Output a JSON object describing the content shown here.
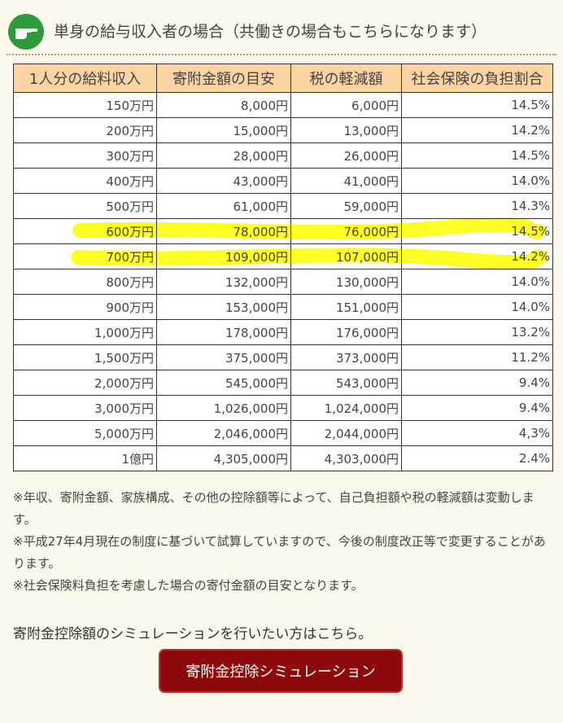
{
  "header": {
    "title": "単身の給与収入者の場合（共働きの場合もこちらになります）"
  },
  "table": {
    "columns": [
      "1人分の給料収入",
      "寄附金額の目安",
      "税の軽減額",
      "社会保険の負担割合"
    ],
    "rows": [
      [
        "150万円",
        "8,000円",
        "6,000円",
        "14.5%"
      ],
      [
        "200万円",
        "15,000円",
        "13,000円",
        "14.2%"
      ],
      [
        "300万円",
        "28,000円",
        "26,000円",
        "14.5%"
      ],
      [
        "400万円",
        "43,000円",
        "41,000円",
        "14.0%"
      ],
      [
        "500万円",
        "61,000円",
        "59,000円",
        "14.3%"
      ],
      [
        "600万円",
        "78,000円",
        "76,000円",
        "14.5%"
      ],
      [
        "700万円",
        "109,000円",
        "107,000円",
        "14.2%"
      ],
      [
        "800万円",
        "132,000円",
        "130,000円",
        "14.0%"
      ],
      [
        "900万円",
        "153,000円",
        "151,000円",
        "14.0%"
      ],
      [
        "1,000万円",
        "178,000円",
        "176,000円",
        "13.2%"
      ],
      [
        "1,500万円",
        "375,000円",
        "373,000円",
        "11.2%"
      ],
      [
        "2,000万円",
        "545,000円",
        "543,000円",
        "9.4%"
      ],
      [
        "3,000万円",
        "1,026,000円",
        "1,024,000円",
        "9.4%"
      ],
      [
        "5,000万円",
        "2,046,000円",
        "2,044,000円",
        "4,3%"
      ],
      [
        "1億円",
        "4,305,000円",
        "4,303,000円",
        "2.4%"
      ]
    ]
  },
  "notes": [
    "※年収、寄附金額、家族構成、その他の控除額等によって、自己負担額や税の軽減額は変動します。",
    "※平成27年4月現在の制度に基づいて試算していますので、今後の制度改正等で変更することがあります。",
    "※社会保険料負担を考慮した場合の寄付金額の目安となります。"
  ],
  "simulation": {
    "text": "寄附金控除額のシミュレーションを行いたい方はこちら。",
    "button": "寄附金控除シミュレーション"
  }
}
